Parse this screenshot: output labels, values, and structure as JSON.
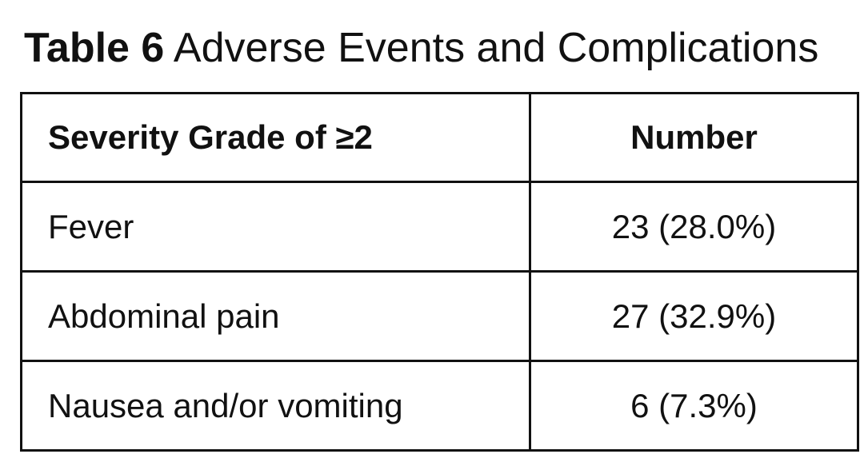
{
  "table": {
    "label": "Table 6",
    "title": "Adverse Events and Complications",
    "headers": [
      "Severity Grade of ≥2",
      "Number"
    ],
    "rows": [
      {
        "event": "Fever",
        "number": "23 (28.0%)"
      },
      {
        "event": "Abdominal pain",
        "number": "27 (32.9%)"
      },
      {
        "event": "Nausea and/or vomiting",
        "number": "6 (7.3%)"
      }
    ]
  }
}
